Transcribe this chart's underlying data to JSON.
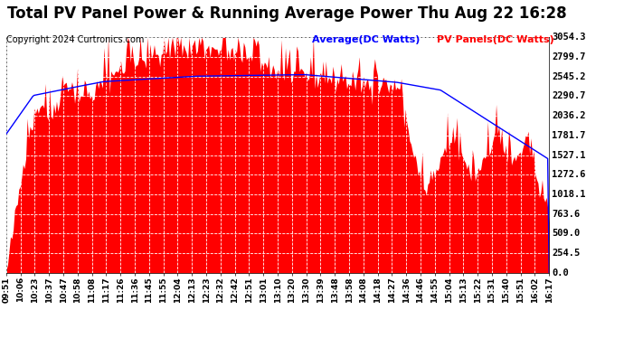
{
  "title": "Total PV Panel Power & Running Average Power Thu Aug 22 16:28",
  "copyright": "Copyright 2024 Curtronics.com",
  "legend_avg": "Average(DC Watts)",
  "legend_pv": "PV Panels(DC Watts)",
  "avg_color": "#0000ff",
  "pv_color": "#ff0000",
  "legend_avg_color": "#0000ff",
  "legend_pv_color": "#ff0000",
  "title_color": "black",
  "background_color": "#ffffff",
  "plot_bg_color": "#ffffff",
  "grid_color": "#aaaaaa",
  "yticks": [
    0.0,
    254.5,
    509.0,
    763.6,
    1018.1,
    1272.6,
    1527.1,
    1781.7,
    2036.2,
    2290.7,
    2545.2,
    2799.7,
    3054.3
  ],
  "ymax": 3054.3,
  "ymin": 0.0,
  "x_tick_labels": [
    "09:51",
    "10:06",
    "10:23",
    "10:37",
    "10:47",
    "10:58",
    "11:08",
    "11:17",
    "11:26",
    "11:36",
    "11:45",
    "11:55",
    "12:04",
    "12:13",
    "12:23",
    "12:32",
    "12:42",
    "12:51",
    "13:01",
    "13:10",
    "13:20",
    "13:30",
    "13:39",
    "13:48",
    "13:58",
    "14:08",
    "14:18",
    "14:27",
    "14:36",
    "14:46",
    "14:55",
    "15:04",
    "15:13",
    "15:22",
    "15:31",
    "15:40",
    "15:51",
    "16:02",
    "16:17"
  ],
  "n_points": 390,
  "title_fontsize": 12,
  "copyright_fontsize": 7,
  "legend_fontsize": 8,
  "ytick_fontsize": 7.5,
  "xtick_fontsize": 6.5
}
